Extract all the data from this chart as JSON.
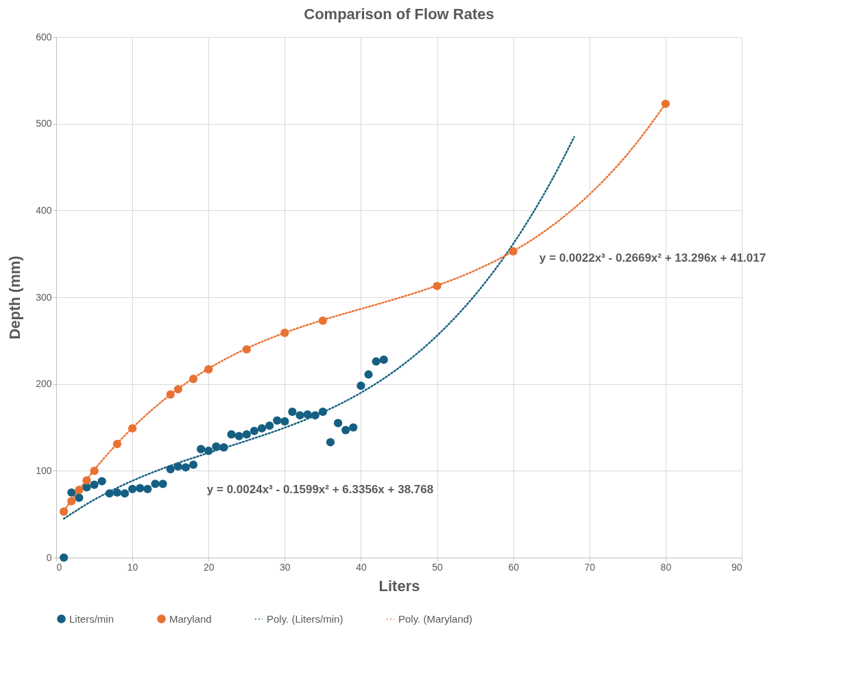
{
  "chart_data": {
    "type": "scatter",
    "title": "Comparison of Flow Rates",
    "xlabel": "Liters",
    "ylabel": "Depth (mm)",
    "xlim": [
      0,
      90
    ],
    "xticks": [
      0,
      10,
      20,
      30,
      40,
      50,
      60,
      70,
      80,
      90
    ],
    "ylim": [
      0,
      600
    ],
    "yticks": [
      0,
      100,
      200,
      300,
      400,
      500,
      600
    ],
    "grid": true,
    "legend": "bottom",
    "series": [
      {
        "name": "Liters/min",
        "marker": "circle",
        "color": "#156082",
        "x": [
          1,
          2,
          3,
          4,
          5,
          6,
          7,
          8,
          9,
          10,
          11,
          12,
          13,
          14,
          15,
          16,
          17,
          18,
          19,
          20,
          21,
          22,
          23,
          24,
          25,
          26,
          27,
          28,
          29,
          30,
          31,
          32,
          33,
          34,
          35,
          36,
          37,
          38,
          39,
          40,
          41,
          42,
          43
        ],
        "values": [
          0,
          75,
          69,
          81,
          84,
          88,
          74,
          75,
          74,
          79,
          80,
          79,
          85,
          85,
          102,
          105,
          104,
          107,
          125,
          123,
          128,
          127,
          142,
          140,
          142,
          146,
          149,
          152,
          158,
          157,
          168,
          164,
          165,
          164,
          168,
          133,
          155,
          147,
          150,
          198,
          211,
          226,
          228
        ]
      },
      {
        "name": "Maryland",
        "marker": "circle",
        "color": "#e97132",
        "x": [
          1,
          2,
          3,
          4,
          5,
          8,
          10,
          15,
          16,
          18,
          20,
          25,
          30,
          35,
          50,
          60,
          80
        ],
        "values": [
          53,
          65,
          78,
          89,
          100,
          131,
          149,
          188,
          194,
          206,
          217,
          240,
          259,
          273,
          313,
          353,
          523
        ]
      },
      {
        "name": "Poly. (Liters/min)",
        "type": "line",
        "marker": "none",
        "line_style": "dotted",
        "color": "#156082",
        "x": [
          1,
          5,
          10,
          15,
          20,
          25,
          30,
          35,
          40,
          45,
          50,
          55,
          60,
          65,
          68
        ],
        "values": [
          44.9,
          66.7,
          88.5,
          105.9,
          120.7,
          134.7,
          149.7,
          167.5,
          190.0,
          218.8,
          255.8,
          302.8,
          361.7,
          434.1,
          484.8
        ]
      },
      {
        "name": "Poly. (Maryland)",
        "type": "line",
        "marker": "none",
        "line_style": "dotted",
        "color": "#e97132",
        "x": [
          1,
          5,
          10,
          15,
          20,
          25,
          30,
          35,
          40,
          45,
          50,
          55,
          60,
          65,
          70,
          75,
          80
        ],
        "values": [
          54.0,
          101.1,
          149.5,
          187.8,
          217.8,
          241.0,
          259.1,
          273.8,
          286.6,
          299.3,
          313.6,
          331.0,
          353.1,
          381.8,
          418.5,
          465.0,
          523.0
        ]
      }
    ],
    "annotations": [
      "y = 0.0024x³ - 0.1599x² + 6.3356x + 38.768",
      "y = 0.0022x³ - 0.2669x² + 13.296x + 41.017"
    ]
  }
}
